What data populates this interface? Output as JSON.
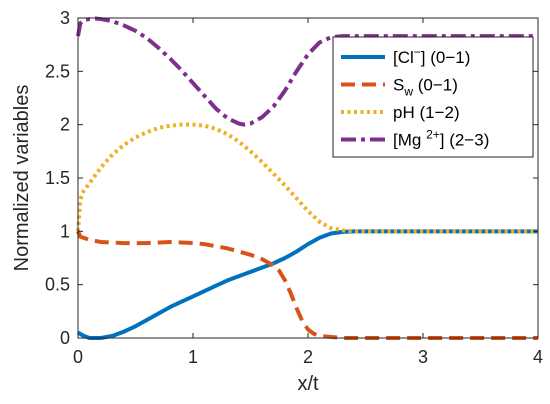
{
  "chart_data": {
    "type": "line",
    "xlabel": "x/t",
    "ylabel": "Normalized variables",
    "xlim": [
      0,
      4
    ],
    "ylim": [
      0,
      3
    ],
    "x_ticks": [
      "0",
      "1",
      "2",
      "3",
      "4"
    ],
    "y_ticks": [
      "0",
      "0.5",
      "1",
      "1.5",
      "2",
      "2.5",
      "3"
    ],
    "grid": false,
    "legend_position": "top-right",
    "series": [
      {
        "name": "[Cl⁻] (0−1)",
        "color": "#0072BD",
        "style": "solid",
        "x": [
          0,
          0.05,
          0.1,
          0.2,
          0.3,
          0.4,
          0.5,
          0.6,
          0.7,
          0.8,
          0.9,
          1.0,
          1.1,
          1.2,
          1.3,
          1.4,
          1.5,
          1.6,
          1.7,
          1.8,
          1.9,
          2.0,
          2.1,
          2.2,
          2.3,
          2.4,
          2.5,
          2.75,
          3.0,
          3.5,
          4.0
        ],
        "y": [
          0.05,
          0.02,
          0.0,
          0.0,
          0.02,
          0.06,
          0.11,
          0.17,
          0.23,
          0.29,
          0.34,
          0.39,
          0.44,
          0.49,
          0.54,
          0.58,
          0.62,
          0.66,
          0.7,
          0.75,
          0.81,
          0.88,
          0.94,
          0.98,
          0.995,
          1.0,
          1.0,
          1.0,
          1.0,
          1.0,
          1.0
        ]
      },
      {
        "name": "S_w (0−1)",
        "color": "#D95319",
        "style": "dashed",
        "x": [
          0,
          0.02,
          0.1,
          0.2,
          0.4,
          0.6,
          0.8,
          1.0,
          1.1,
          1.2,
          1.3,
          1.4,
          1.5,
          1.6,
          1.7,
          1.75,
          1.8,
          1.85,
          1.9,
          1.95,
          2.0,
          2.05,
          2.1,
          2.2,
          2.3,
          2.5,
          3.0,
          3.5,
          4.0
        ],
        "y": [
          1.0,
          0.95,
          0.92,
          0.9,
          0.89,
          0.89,
          0.9,
          0.89,
          0.88,
          0.86,
          0.84,
          0.81,
          0.78,
          0.74,
          0.68,
          0.63,
          0.54,
          0.42,
          0.28,
          0.16,
          0.08,
          0.04,
          0.02,
          0.01,
          0.0,
          0.0,
          0.0,
          0.0,
          0.0
        ]
      },
      {
        "name": "pH (1−2)",
        "color": "#EDB120",
        "style": "dotted",
        "x": [
          0,
          0.02,
          0.05,
          0.1,
          0.2,
          0.3,
          0.4,
          0.5,
          0.6,
          0.7,
          0.8,
          0.9,
          1.0,
          1.1,
          1.2,
          1.3,
          1.4,
          1.5,
          1.6,
          1.7,
          1.8,
          1.9,
          2.0,
          2.1,
          2.2,
          2.3,
          2.4,
          2.5,
          3.0,
          3.5,
          4.0
        ],
        "y": [
          1.0,
          1.3,
          1.38,
          1.45,
          1.6,
          1.72,
          1.81,
          1.88,
          1.93,
          1.97,
          1.99,
          2.0,
          2.0,
          1.99,
          1.96,
          1.91,
          1.84,
          1.75,
          1.65,
          1.54,
          1.43,
          1.31,
          1.19,
          1.09,
          1.03,
          1.01,
          1.0,
          1.0,
          1.0,
          1.0,
          1.0
        ]
      },
      {
        "name": "[Mg²⁺] (2−3)",
        "color": "#7E2F8E",
        "style": "dashdot",
        "x": [
          0,
          0.02,
          0.05,
          0.1,
          0.15,
          0.2,
          0.3,
          0.4,
          0.5,
          0.6,
          0.7,
          0.8,
          0.9,
          1.0,
          1.1,
          1.2,
          1.3,
          1.4,
          1.45,
          1.5,
          1.6,
          1.7,
          1.8,
          1.9,
          2.0,
          2.1,
          2.2,
          2.3,
          2.4,
          2.5,
          3.0,
          3.5,
          4.0
        ],
        "y": [
          2.83,
          2.95,
          2.98,
          2.99,
          2.995,
          2.99,
          2.97,
          2.93,
          2.88,
          2.81,
          2.72,
          2.62,
          2.51,
          2.39,
          2.27,
          2.15,
          2.06,
          2.01,
          2.0,
          2.01,
          2.07,
          2.17,
          2.32,
          2.5,
          2.66,
          2.77,
          2.82,
          2.83,
          2.83,
          2.83,
          2.83,
          2.83,
          2.83
        ]
      }
    ]
  },
  "legend": [
    {
      "base": "[Cl",
      "sup": "−",
      "sub": "",
      "tail": "] (0−1)"
    },
    {
      "base": "S",
      "sup": "",
      "sub": "w",
      "tail": " (0−1)"
    },
    {
      "base": "pH (1−2)",
      "sup": "",
      "sub": "",
      "tail": ""
    },
    {
      "base": "[Mg ",
      "sup": "2+",
      "sub": "",
      "tail": "] (2−3)"
    }
  ]
}
